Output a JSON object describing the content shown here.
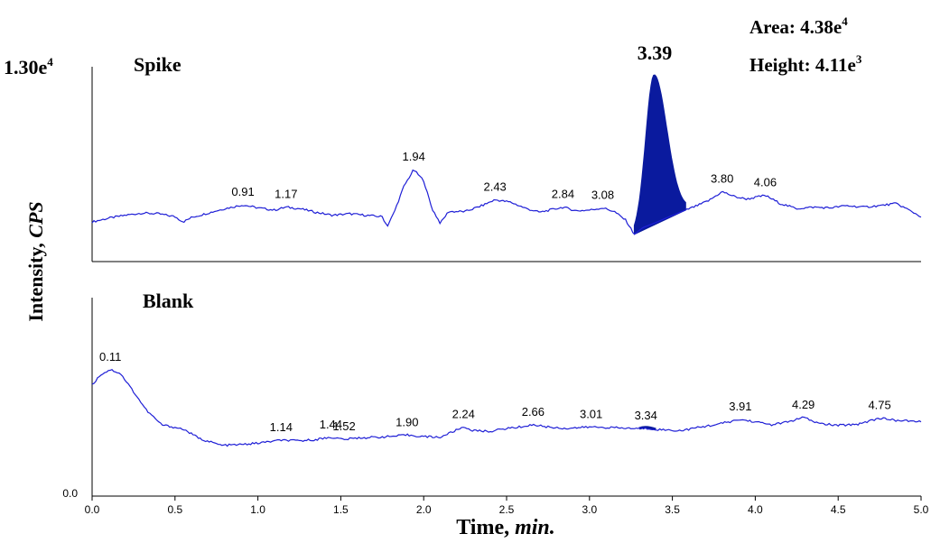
{
  "chart_data": {
    "type": "line",
    "colors": {
      "trace": "#1f1fd6",
      "peak_fill": "#0a1a9e",
      "axis": "#000000"
    },
    "x": {
      "label": "Time,",
      "label_unit": "min.",
      "range": [
        0.0,
        5.0
      ],
      "ticks": [
        "0.0",
        "0.5",
        "1.0",
        "1.5",
        "2.0",
        "2.5",
        "3.0",
        "3.5",
        "4.0",
        "4.5",
        "5.0"
      ]
    },
    "y": {
      "label": "Intensity,",
      "label_unit": "CPS",
      "max_label": "1.30e",
      "max_label_exp": "4",
      "min_label": "0.0",
      "range": [
        0,
        13000
      ]
    },
    "annotation": {
      "area_label": "Area: 4.38e",
      "area_exp": "4",
      "height_label": "Height: 4.11e",
      "height_exp": "3"
    },
    "panels": [
      {
        "name": "Spike",
        "highlight_peak": {
          "label": "3.39",
          "start": 3.27,
          "apex": 3.39,
          "end": 3.58,
          "height": 12700
        },
        "points": [
          [
            0.0,
            2700
          ],
          [
            0.1,
            2950
          ],
          [
            0.2,
            3150
          ],
          [
            0.3,
            3300
          ],
          [
            0.4,
            3250
          ],
          [
            0.5,
            3050
          ],
          [
            0.55,
            2700
          ],
          [
            0.6,
            3000
          ],
          [
            0.7,
            3300
          ],
          [
            0.8,
            3600
          ],
          [
            0.91,
            3850
          ],
          [
            1.0,
            3650
          ],
          [
            1.1,
            3500
          ],
          [
            1.17,
            3700
          ],
          [
            1.25,
            3600
          ],
          [
            1.35,
            3350
          ],
          [
            1.45,
            3150
          ],
          [
            1.55,
            3250
          ],
          [
            1.65,
            3150
          ],
          [
            1.75,
            3050
          ],
          [
            1.78,
            2400
          ],
          [
            1.82,
            3300
          ],
          [
            1.88,
            5100
          ],
          [
            1.94,
            6250
          ],
          [
            2.0,
            5500
          ],
          [
            2.05,
            3600
          ],
          [
            2.1,
            2600
          ],
          [
            2.15,
            3400
          ],
          [
            2.25,
            3400
          ],
          [
            2.35,
            3800
          ],
          [
            2.43,
            4200
          ],
          [
            2.52,
            4050
          ],
          [
            2.62,
            3600
          ],
          [
            2.7,
            3350
          ],
          [
            2.78,
            3550
          ],
          [
            2.84,
            3700
          ],
          [
            2.92,
            3450
          ],
          [
            3.0,
            3500
          ],
          [
            3.08,
            3650
          ],
          [
            3.15,
            3400
          ],
          [
            3.22,
            2800
          ],
          [
            3.27,
            1850
          ],
          [
            3.32,
            2300
          ],
          [
            3.4,
            2650
          ],
          [
            3.48,
            3050
          ],
          [
            3.58,
            3500
          ],
          [
            3.65,
            3800
          ],
          [
            3.72,
            4150
          ],
          [
            3.8,
            4750
          ],
          [
            3.88,
            4400
          ],
          [
            3.95,
            4250
          ],
          [
            4.06,
            4500
          ],
          [
            4.15,
            3950
          ],
          [
            4.25,
            3600
          ],
          [
            4.35,
            3700
          ],
          [
            4.45,
            3650
          ],
          [
            4.55,
            3800
          ],
          [
            4.65,
            3700
          ],
          [
            4.75,
            3800
          ],
          [
            4.85,
            3950
          ],
          [
            4.92,
            3550
          ],
          [
            5.0,
            3050
          ]
        ],
        "peak_labels": [
          {
            "x": 0.91,
            "label": "0.91"
          },
          {
            "x": 1.17,
            "label": "1.17"
          },
          {
            "x": 1.94,
            "label": "1.94"
          },
          {
            "x": 2.43,
            "label": "2.43"
          },
          {
            "x": 2.84,
            "label": "2.84"
          },
          {
            "x": 3.08,
            "label": "3.08"
          },
          {
            "x": 3.8,
            "label": "3.80"
          },
          {
            "x": 4.06,
            "label": "4.06"
          }
        ]
      },
      {
        "name": "Blank",
        "points": [
          [
            0.0,
            7550
          ],
          [
            0.05,
            8250
          ],
          [
            0.11,
            8600
          ],
          [
            0.17,
            8350
          ],
          [
            0.25,
            7100
          ],
          [
            0.33,
            5800
          ],
          [
            0.42,
            4850
          ],
          [
            0.55,
            4550
          ],
          [
            0.65,
            3900
          ],
          [
            0.78,
            3450
          ],
          [
            0.9,
            3500
          ],
          [
            1.0,
            3600
          ],
          [
            1.14,
            3800
          ],
          [
            1.25,
            3750
          ],
          [
            1.35,
            3850
          ],
          [
            1.44,
            4000
          ],
          [
            1.52,
            3850
          ],
          [
            1.6,
            3950
          ],
          [
            1.7,
            4000
          ],
          [
            1.8,
            4050
          ],
          [
            1.9,
            4150
          ],
          [
            2.0,
            4050
          ],
          [
            2.1,
            4000
          ],
          [
            2.17,
            4350
          ],
          [
            2.24,
            4700
          ],
          [
            2.3,
            4450
          ],
          [
            2.4,
            4400
          ],
          [
            2.5,
            4600
          ],
          [
            2.58,
            4700
          ],
          [
            2.66,
            4850
          ],
          [
            2.75,
            4700
          ],
          [
            2.85,
            4600
          ],
          [
            3.01,
            4700
          ],
          [
            3.15,
            4650
          ],
          [
            3.25,
            4600
          ],
          [
            3.34,
            4600
          ],
          [
            3.45,
            4500
          ],
          [
            3.55,
            4450
          ],
          [
            3.65,
            4650
          ],
          [
            3.78,
            4900
          ],
          [
            3.91,
            5200
          ],
          [
            4.0,
            5050
          ],
          [
            4.1,
            4850
          ],
          [
            4.2,
            5050
          ],
          [
            4.29,
            5350
          ],
          [
            4.38,
            4950
          ],
          [
            4.5,
            4800
          ],
          [
            4.62,
            4900
          ],
          [
            4.75,
            5300
          ],
          [
            4.85,
            5150
          ],
          [
            5.0,
            5050
          ]
        ],
        "peak_labels": [
          {
            "x": 0.11,
            "label": "0.11"
          },
          {
            "x": 1.14,
            "label": "1.14"
          },
          {
            "x": 1.44,
            "label": "1.44"
          },
          {
            "x": 1.52,
            "label": "1.52"
          },
          {
            "x": 1.9,
            "label": "1.90"
          },
          {
            "x": 2.24,
            "label": "2.24"
          },
          {
            "x": 2.66,
            "label": "2.66"
          },
          {
            "x": 3.01,
            "label": "3.01"
          },
          {
            "x": 3.34,
            "label": "3.34"
          },
          {
            "x": 3.91,
            "label": "3.91"
          },
          {
            "x": 4.29,
            "label": "4.29"
          },
          {
            "x": 4.75,
            "label": "4.75"
          }
        ]
      }
    ]
  }
}
